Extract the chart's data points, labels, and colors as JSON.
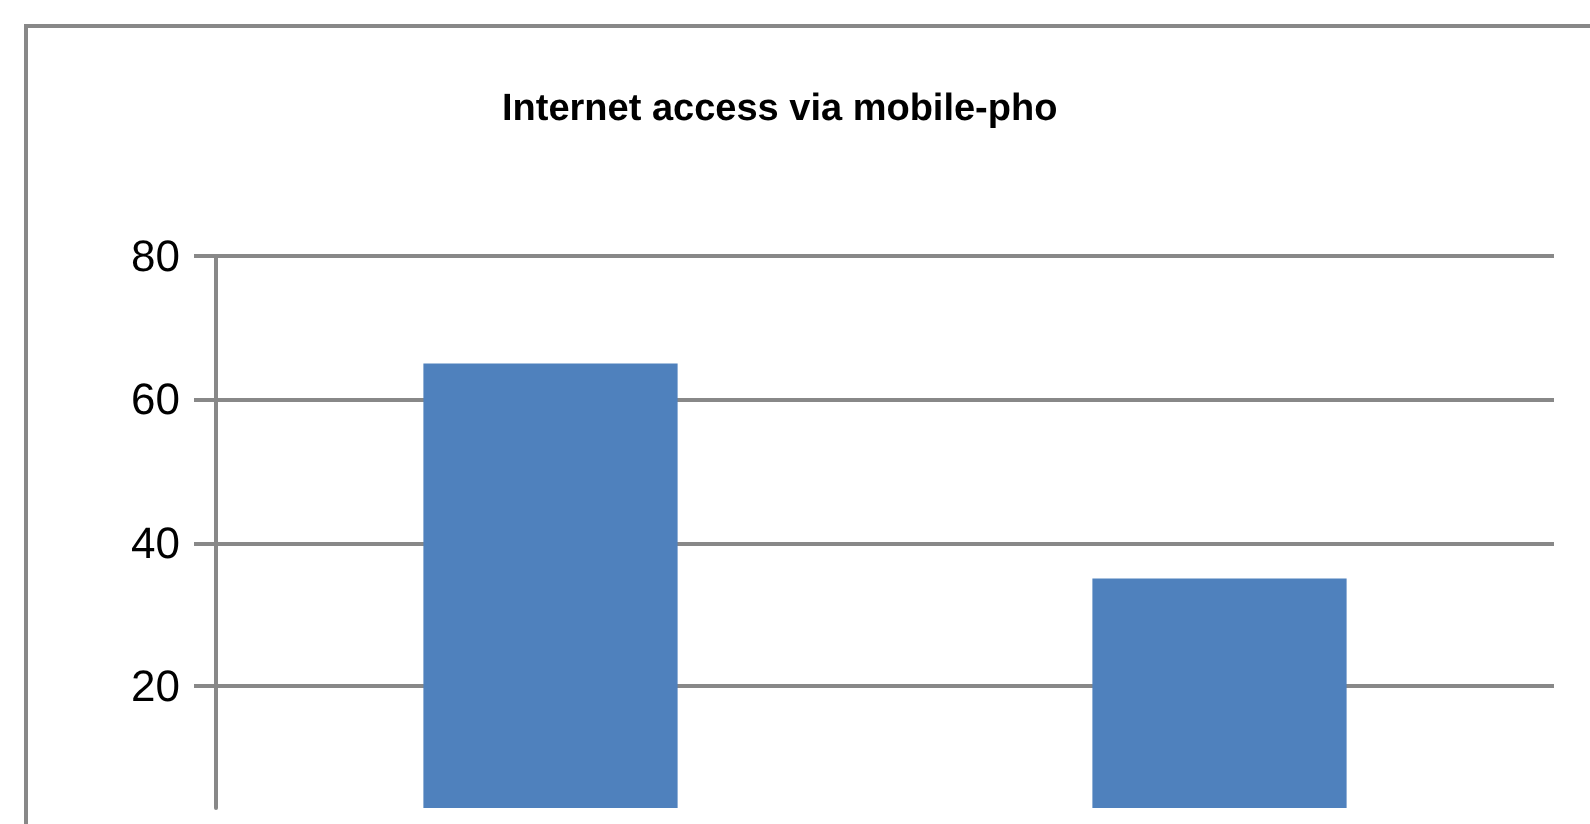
{
  "chart_data": {
    "type": "bar",
    "title": "Internet access via mobile-pho",
    "categories": [
      null,
      null
    ],
    "values": [
      65,
      35
    ],
    "color": "#4f81bd",
    "ylim": [
      3,
      80
    ],
    "yticks": [
      20,
      40,
      60,
      80
    ],
    "grid": "y"
  }
}
